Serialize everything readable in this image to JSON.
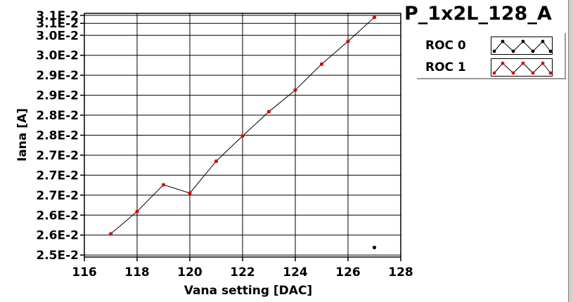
{
  "chart_data": {
    "type": "line",
    "title": "P_1x2L_128_A",
    "xlabel": "Vana setting [DAC]",
    "ylabel": "Iana [A]",
    "xlim": [
      116,
      128
    ],
    "ylim": [
      0.02495,
      0.03105
    ],
    "grid": true,
    "legend_position": "top-right",
    "x_ticks": [
      116,
      118,
      120,
      122,
      124,
      126,
      128
    ],
    "x_tick_labels": [
      "116",
      "118",
      "120",
      "122",
      "124",
      "126",
      "128"
    ],
    "y_ticks": [
      0.025,
      0.02525,
      0.0255,
      0.02575,
      0.026,
      0.02625,
      0.0265,
      0.02675,
      0.027,
      0.02725,
      0.0275,
      0.02775,
      0.028,
      0.02825,
      0.0285,
      0.02875,
      0.029,
      0.02925,
      0.0295,
      0.02975,
      0.03,
      0.03025,
      0.0305,
      0.03075,
      0.031
    ],
    "y_tick_labels": [
      "2.5E-2",
      "2.6E-2",
      "2.6E-2",
      "2.7E-2",
      "2.7E-2",
      "2.7E-2",
      "2.8E-2",
      "2.8E-2",
      "2.9E-2",
      "2.9E-2",
      "3.0E-2",
      "3.0E-2",
      "3.1E-2",
      "3.1E-2"
    ],
    "y_tick_label_values": [
      0.025,
      0.0255,
      0.026,
      0.0265,
      0.027,
      0.0275,
      0.028,
      0.0285,
      0.029,
      0.0295,
      0.03,
      0.0305,
      0.0308,
      0.031
    ],
    "series": [
      {
        "name": "ROC 0",
        "color": "#000000",
        "marker": "circle",
        "line": false,
        "x": [
          127
        ],
        "y": [
          0.02519
        ]
      },
      {
        "name": "ROC 1",
        "color": "#e00000",
        "line_color": "#000000",
        "marker": "circle",
        "line": true,
        "x": [
          117,
          118,
          119,
          120,
          121,
          122,
          123,
          124,
          125,
          126,
          127
        ],
        "y": [
          0.02553,
          0.02609,
          0.02676,
          0.02655,
          0.02735,
          0.02798,
          0.02859,
          0.02913,
          0.02978,
          0.03035,
          0.03095
        ]
      }
    ]
  },
  "legend": {
    "entries": [
      {
        "label": "ROC 0",
        "marker_color": "#000000"
      },
      {
        "label": "ROC 1",
        "marker_color": "#e00000"
      }
    ]
  }
}
